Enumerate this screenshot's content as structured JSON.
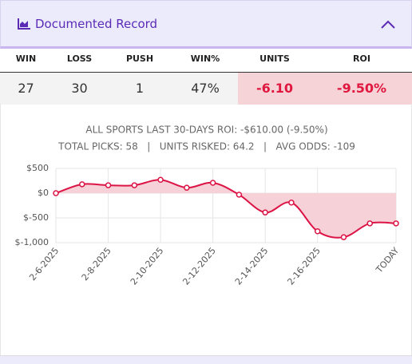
{
  "header": {
    "title": "Documented Record"
  },
  "table": {
    "columns": [
      "WIN",
      "LOSS",
      "PUSH",
      "WIN%",
      "UNITS",
      "ROI"
    ],
    "row": [
      "27",
      "30",
      "1",
      "47%",
      "-6.10",
      "-9.50%"
    ]
  },
  "chart_data": {
    "type": "line",
    "title": "ALL SPORTS LAST 30-DAYS ROI: -$610.00 (-9.50%)",
    "subtitle": "TOTAL PICKS: 58   |   UNITS RISKED: 64.2   |   AVG ODDS: -109",
    "categories": [
      "2-6-2025",
      null,
      "2-8-2025",
      null,
      "2-10-2025",
      null,
      "2-12-2025",
      null,
      "2-14-2025",
      null,
      "2-16-2025",
      null,
      null,
      "TODAY"
    ],
    "values": [
      0,
      180,
      160,
      160,
      270,
      110,
      210,
      -30,
      -390,
      -190,
      -770,
      -890,
      -610,
      -610
    ],
    "color": "#dc1446",
    "fill": "#f6d2d8",
    "ylim": [
      -1000,
      500
    ],
    "yticks": [
      {
        "value": 500,
        "label": "$500"
      },
      {
        "value": 0,
        "label": "$0"
      },
      {
        "value": -500,
        "label": "$-500"
      },
      {
        "value": -1000,
        "label": "$-1,000"
      }
    ],
    "grid": true
  }
}
